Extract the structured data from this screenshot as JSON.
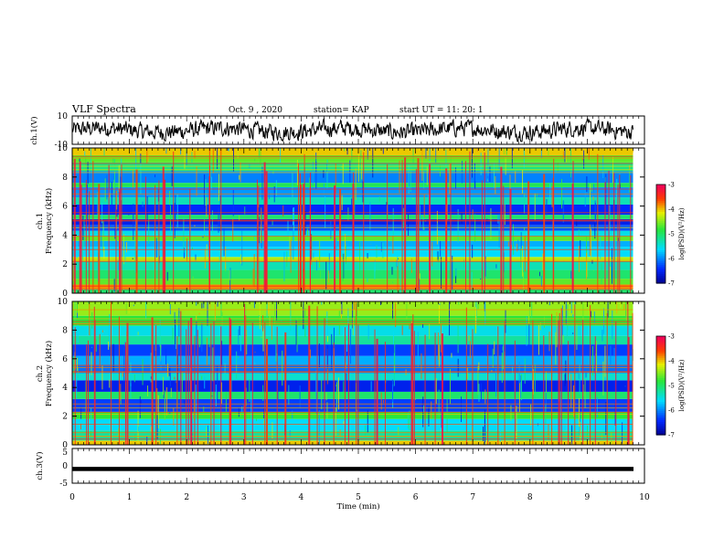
{
  "header": {
    "title": "VLF Spectra",
    "date": "Oct. 9  , 2020",
    "station": "station= KAP",
    "start": "start  UT =   11: 20: 1"
  },
  "chart_data": [
    {
      "type": "line",
      "ylabel": "ch.1(V)",
      "ylim": [
        -10,
        10
      ],
      "yticks": [
        "10",
        "-10"
      ],
      "xlim": [
        0,
        10
      ],
      "description_series": "noisy waveform oscillating approximately between -7 and +7 V"
    },
    {
      "type": "heatmap",
      "ylabel": "ch.1\nFrequency  (kHz)",
      "ylabel_lines": [
        "ch.1",
        "Frequency  (kHz)"
      ],
      "ylim": [
        0,
        10
      ],
      "yticks": [
        "0",
        "2",
        "4",
        "6",
        "8",
        "10"
      ],
      "xlim": [
        0,
        9.8
      ],
      "colorbar": {
        "label": "log(PSD)(V²/Hz)",
        "range": [
          -7,
          -3
        ],
        "ticks": [
          "-3",
          "-4",
          "-5",
          "-6",
          "-7"
        ]
      },
      "bands": [
        {
          "from": 0.0,
          "to": 0.3,
          "level": -5.0
        },
        {
          "from": 0.3,
          "to": 0.6,
          "level": -3.8
        },
        {
          "from": 0.6,
          "to": 1.0,
          "level": -4.6
        },
        {
          "from": 1.0,
          "to": 1.6,
          "level": -5.0
        },
        {
          "from": 1.6,
          "to": 2.2,
          "level": -5.3
        },
        {
          "from": 2.2,
          "to": 2.5,
          "level": -4.3
        },
        {
          "from": 2.5,
          "to": 3.2,
          "level": -5.6
        },
        {
          "from": 3.2,
          "to": 3.6,
          "level": -5.8
        },
        {
          "from": 3.6,
          "to": 3.9,
          "level": -4.6
        },
        {
          "from": 3.9,
          "to": 4.3,
          "level": -5.5
        },
        {
          "from": 4.3,
          "to": 4.7,
          "level": -6.2
        },
        {
          "from": 4.7,
          "to": 5.1,
          "level": -6.5
        },
        {
          "from": 5.1,
          "to": 5.4,
          "level": -5.0
        },
        {
          "from": 5.4,
          "to": 6.1,
          "level": -6.4
        },
        {
          "from": 6.1,
          "to": 6.6,
          "level": -5.3
        },
        {
          "from": 6.6,
          "to": 7.3,
          "level": -5.9
        },
        {
          "from": 7.3,
          "to": 7.6,
          "level": -4.9
        },
        {
          "from": 7.6,
          "to": 8.4,
          "level": -6.0
        },
        {
          "from": 8.4,
          "to": 9.0,
          "level": -5.1
        },
        {
          "from": 9.0,
          "to": 9.5,
          "level": -4.6
        },
        {
          "from": 9.5,
          "to": 10.0,
          "level": -4.0
        }
      ]
    },
    {
      "type": "heatmap",
      "ylabel": "ch.2\nFrequency  (kHz)",
      "ylabel_lines": [
        "ch.2",
        "Frequency  (kHz)"
      ],
      "ylim": [
        0,
        10
      ],
      "yticks": [
        "0",
        "2",
        "4",
        "6",
        "8",
        "10"
      ],
      "xlim": [
        0,
        9.8
      ],
      "colorbar": {
        "label": "log(PSD)(V²/Hz)",
        "range": [
          -7,
          -3
        ],
        "ticks": [
          "-3",
          "-4",
          "-5",
          "-6",
          "-7"
        ]
      },
      "bands": [
        {
          "from": 0.0,
          "to": 0.3,
          "level": -4.0
        },
        {
          "from": 0.3,
          "to": 1.0,
          "level": -5.2
        },
        {
          "from": 1.0,
          "to": 1.8,
          "level": -5.6
        },
        {
          "from": 1.8,
          "to": 2.3,
          "level": -4.8
        },
        {
          "from": 2.3,
          "to": 3.2,
          "level": -6.3
        },
        {
          "from": 3.2,
          "to": 3.7,
          "level": -5.0
        },
        {
          "from": 3.7,
          "to": 4.5,
          "level": -6.5
        },
        {
          "from": 4.5,
          "to": 5.0,
          "level": -5.4
        },
        {
          "from": 5.0,
          "to": 5.6,
          "level": -6.1
        },
        {
          "from": 5.6,
          "to": 6.2,
          "level": -5.8
        },
        {
          "from": 6.2,
          "to": 7.0,
          "level": -6.3
        },
        {
          "from": 7.0,
          "to": 7.6,
          "level": -5.2
        },
        {
          "from": 7.6,
          "to": 8.3,
          "level": -5.5
        },
        {
          "from": 8.3,
          "to": 9.0,
          "level": -4.8
        },
        {
          "from": 9.0,
          "to": 10.0,
          "level": -4.4
        }
      ]
    },
    {
      "type": "line",
      "ylabel": "ch.3(V)",
      "ylim": [
        -5,
        5
      ],
      "yticks": [
        "5",
        "0",
        "-5"
      ],
      "xlim": [
        0,
        10
      ],
      "xlabel": "Time  (min)",
      "xticks": [
        "0",
        "1",
        "2",
        "3",
        "4",
        "5",
        "6",
        "7",
        "8",
        "9",
        "10"
      ],
      "signal_band": [
        -1.5,
        -0.3
      ]
    }
  ]
}
